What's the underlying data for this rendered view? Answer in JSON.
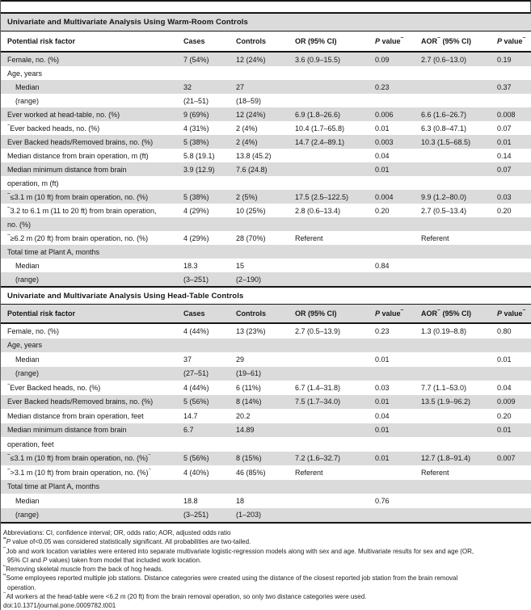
{
  "colors": {
    "row_shade": "#dbdbdb",
    "rule": "#161616",
    "background": "#ffffff"
  },
  "columns": [
    {
      "parts": [
        {
          "t": "Potential risk factor"
        }
      ]
    },
    {
      "parts": [
        {
          "t": "Cases"
        }
      ]
    },
    {
      "parts": [
        {
          "t": "Controls"
        }
      ]
    },
    {
      "parts": [
        {
          "t": "OR (95% CI)"
        }
      ]
    },
    {
      "parts": [
        {
          "t": "P",
          "it": true
        },
        {
          "t": " value"
        },
        {
          "t": "a",
          "sup": true
        }
      ]
    },
    {
      "parts": [
        {
          "t": "AOR"
        },
        {
          "t": "b",
          "sup": true
        },
        {
          "t": " (95% CI)"
        }
      ]
    },
    {
      "parts": [
        {
          "t": "P",
          "it": true
        },
        {
          "t": " value"
        },
        {
          "t": "a",
          "sup": true
        }
      ]
    }
  ],
  "table1": {
    "title": "Univariate and Multivariate Analysis Using Warm-Room Controls",
    "first_row_shaded": true,
    "rows": [
      {
        "label": "Female, no. (%)",
        "cases": "7 (54%)",
        "controls": "12 (24%)",
        "or": "3.6 (0.9–15.5)",
        "p1": "0.09",
        "aor": "2.7 (0.6–13.0)",
        "p2": "0.19"
      },
      {
        "label": "Age, years"
      },
      {
        "label": "Median",
        "indent": true,
        "cases": "32",
        "controls": "27",
        "p1": "0.23",
        "p2": "0.37"
      },
      {
        "label": "(range)",
        "indent": true,
        "cases": "(21–51)",
        "controls": "(18–59)"
      },
      {
        "label": "Ever worked at head-table, no. (%)",
        "cases": "9 (69%)",
        "controls": "12 (24%)",
        "or": "6.9 (1.8–26.6)",
        "p1": "0.006",
        "aor": "6.6 (1.6–26.7)",
        "p2": "0.008"
      },
      {
        "sup": "c",
        "label": "Ever backed heads, no. (%)",
        "cases": "4 (31%)",
        "controls": "2 (4%)",
        "or": "10.4 (1.7–65.8)",
        "p1": "0.01",
        "aor": "6.3 (0.8–47.1)",
        "p2": "0.07"
      },
      {
        "label": "Ever Backed heads/Removed brains, no. (%)",
        "cases": "5 (38%)",
        "controls": "2 (4%)",
        "or": "14.7 (2.4–89.1)",
        "p1": "0.003",
        "aor": "10.3 (1.5–68.5)",
        "p2": "0.01"
      },
      {
        "label": "Median distance from brain operation, m (ft)",
        "cases": "5.8 (19.1)",
        "controls": "13.8 (45.2)",
        "p1": "0.04",
        "p2": "0.14"
      },
      {
        "label": "Median minimum distance from brain",
        "cases": "3.9 (12.9)",
        "controls": "7.6 (24.8)",
        "p1": "0.01",
        "p2": "0.07"
      },
      {
        "label": "operation, m (ft)"
      },
      {
        "sup": "d",
        "label": "≤3.1 m (10 ft) from brain operation, no. (%)",
        "cases": "5 (38%)",
        "controls": "2 (5%)",
        "or": "17.5 (2.5–122.5)",
        "p1": "0.004",
        "aor": "9.9 (1.2–80.0)",
        "p2": "0.03"
      },
      {
        "sup": "d",
        "label": "3.2 to 6.1 m (11 to 20 ft) from brain operation,",
        "cases": "4 (29%)",
        "controls": "10 (25%)",
        "or": "2.8 (0.6–13.4)",
        "p1": "0.20",
        "aor": "2.7 (0.5–13.4)",
        "p2": "0.20"
      },
      {
        "label": "no. (%)"
      },
      {
        "sup": "d",
        "label": "≥6.2 m (20 ft) from brain operation, no. (%)",
        "cases": "4 (29%)",
        "controls": "28 (70%)",
        "or": "Referent",
        "aor": "Referent"
      },
      {
        "label": "Total time at Plant A, months"
      },
      {
        "label": "Median",
        "indent": true,
        "cases": "18.3",
        "controls": "15",
        "p1": "0.84"
      },
      {
        "label": "(range)",
        "indent": true,
        "cases": "(3–251)",
        "controls": "(2–190)"
      }
    ]
  },
  "table2": {
    "title": "Univariate and Multivariate Analysis Using Head-Table Controls",
    "first_row_shaded": false,
    "rows": [
      {
        "label": "Female, no. (%)",
        "cases": "4 (44%)",
        "controls": "13 (23%)",
        "or": "2.7 (0.5–13.9)",
        "p1": "0.23",
        "aor": "1.3 (0.19–8.8)",
        "p2": "0.80"
      },
      {
        "label": "Age, years"
      },
      {
        "label": "Median",
        "indent": true,
        "cases": "37",
        "controls": "29",
        "p1": "0.01",
        "p2": "0.01"
      },
      {
        "label": "(range)",
        "indent": true,
        "cases": "(27–51)",
        "controls": "(19–61)"
      },
      {
        "sup": "c",
        "label": "Ever Backed heads, no. (%)",
        "cases": "4 (44%)",
        "controls": "6 (11%)",
        "or": "6.7 (1.4–31.8)",
        "p1": "0.03",
        "aor": "7.7 (1.1–53.0)",
        "p2": "0.04"
      },
      {
        "label": "Ever Backed heads/Removed brains, no. (%)",
        "cases": "5 (56%)",
        "controls": "8 (14%)",
        "or": "7.5 (1.7–34.0)",
        "p1": "0.01",
        "aor": "13.5 (1.9–96.2)",
        "p2": "0.009"
      },
      {
        "label": "Median distance from brain operation, feet",
        "cases": "14.7",
        "controls": "20.2",
        "p1": "0.04",
        "p2": "0.20"
      },
      {
        "label": "Median minimum distance from brain",
        "cases": "6.7",
        "controls": "14.89",
        "p1": "0.01",
        "p2": "0.01"
      },
      {
        "label": "operation, feet"
      },
      {
        "sup": "d",
        "label": "≤3.1 m (10 ft) from brain operation, no. (%)",
        "sup_end": "e",
        "cases": "5 (56%)",
        "controls": "8 (15%)",
        "or": "7.2 (1.6–32.7)",
        "p1": "0.01",
        "aor": "12.7 (1.8–91.4)",
        "p2": "0.007"
      },
      {
        "sup": "d",
        "label": ">3.1 m (10 ft) from brain operation, no. (%)",
        "sup_end": "e",
        "cases": "4 (40%)",
        "controls": "46 (85%)",
        "or": "Referent",
        "aor": "Referent"
      },
      {
        "label": "Total time at Plant A, months"
      },
      {
        "label": "Median",
        "indent": true,
        "cases": "18.8",
        "controls": "18",
        "p1": "0.76"
      },
      {
        "label": "(range)",
        "indent": true,
        "cases": "(3–251)",
        "controls": "(1–203)"
      }
    ]
  },
  "footnotes": {
    "lines": [
      {
        "parts": [
          {
            "t": "Abbreviations: CI, confidence interval; OR, odds ratio; AOR, adjusted odds ratio"
          }
        ]
      },
      {
        "parts": [
          {
            "t": "a",
            "sup": true
          },
          {
            "t": "P",
            "it": true
          },
          {
            "t": " value of<0.05 was considered statistically significant. All probabilities are two-tailed."
          }
        ]
      },
      {
        "parts": [
          {
            "t": "b",
            "sup": true
          },
          {
            "t": "Job and work location variables were entered into separate multivariate logistic-regression models along with sex and age. Multivariate results for sex and age (OR,"
          }
        ]
      },
      {
        "cont": true,
        "parts": [
          {
            "t": "95% CI and "
          },
          {
            "t": "P",
            "it": true
          },
          {
            "t": " values) taken from model that included work location."
          }
        ]
      },
      {
        "parts": [
          {
            "t": "c",
            "sup": true
          },
          {
            "t": "Removing skeletal muscle from the back of hog heads."
          }
        ]
      },
      {
        "parts": [
          {
            "t": "d",
            "sup": true
          },
          {
            "t": "Some employees reported multiple job stations. Distance categories were created using the distance of the closest reported job station from the brain removal"
          }
        ]
      },
      {
        "cont": true,
        "parts": [
          {
            "t": "operation."
          }
        ]
      },
      {
        "parts": [
          {
            "t": "e",
            "sup": true
          },
          {
            "t": "All workers at the head-table were <6.2 m (20 ft) from the brain removal operation, so only two distance categories were used."
          }
        ]
      },
      {
        "parts": [
          {
            "t": "doi:10.1371/journal.pone.0009782.t001"
          }
        ]
      }
    ]
  }
}
